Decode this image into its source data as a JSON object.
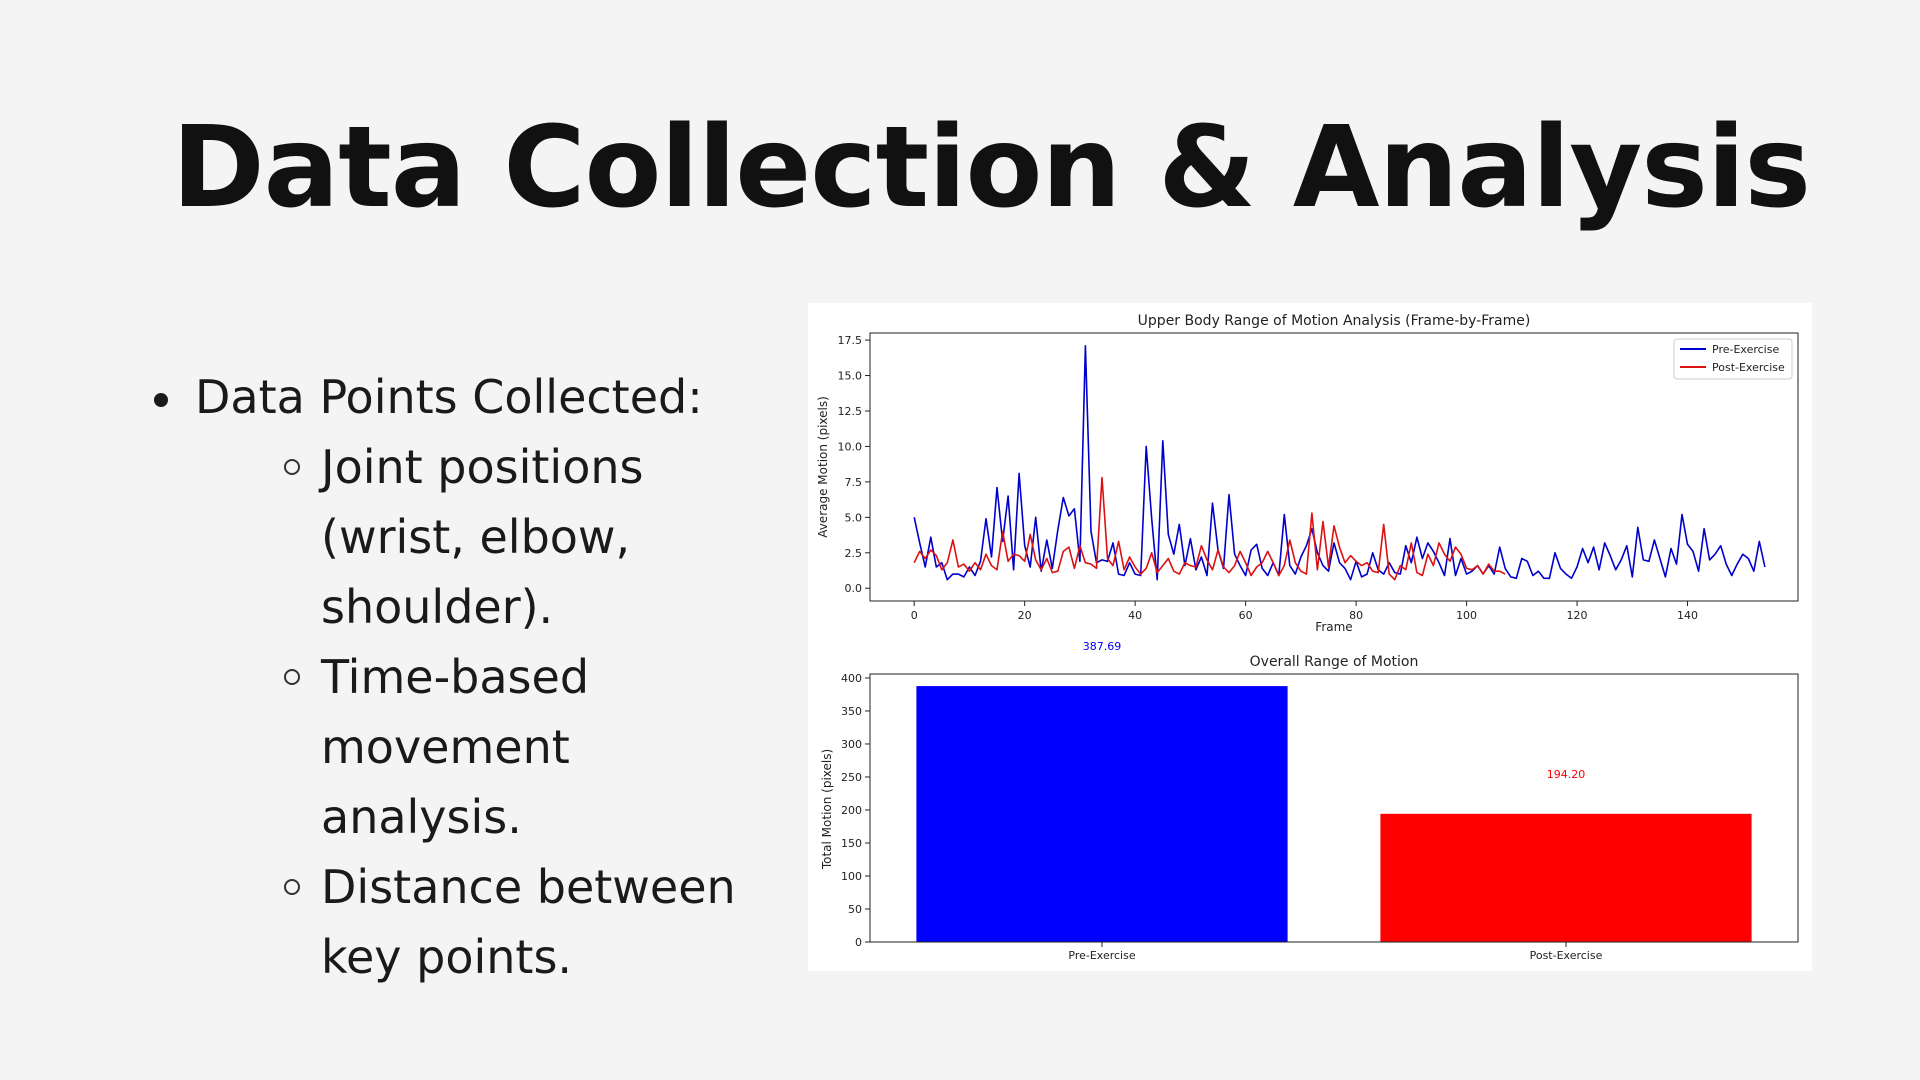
{
  "slide": {
    "title": "Data Collection & Analysis",
    "bullet": "Data Points Collected:",
    "sub_bullets": [
      "Joint positions (wrist, elbow, shoulder).",
      "Time-based movement analysis.",
      "Distance between key points."
    ]
  },
  "chart_data": [
    {
      "type": "line",
      "title": "Upper Body Range of Motion Analysis (Frame-by-Frame)",
      "xlabel": "Frame",
      "ylabel": "Average Motion (pixels)",
      "xlim": [
        -8,
        160
      ],
      "ylim": [
        -0.9,
        18.0
      ],
      "xticks": [
        "0",
        "20",
        "40",
        "60",
        "80",
        "100",
        "120",
        "140"
      ],
      "yticks": [
        "0.0",
        "2.5",
        "5.0",
        "7.5",
        "10.0",
        "12.5",
        "15.0",
        "17.5"
      ],
      "legend_position": "top-right",
      "grid": false,
      "series": [
        {
          "name": "Pre-Exercise",
          "color": "#0000cc",
          "values": [
            5.0,
            3.2,
            1.5,
            3.6,
            1.5,
            1.8,
            0.6,
            1.0,
            1.0,
            0.8,
            1.5,
            0.9,
            1.9,
            4.9,
            2.2,
            7.1,
            3.3,
            6.5,
            1.3,
            8.1,
            3.0,
            1.5,
            5.0,
            1.2,
            3.4,
            1.4,
            4.1,
            6.4,
            5.1,
            5.6,
            1.9,
            17.1,
            4.0,
            1.8,
            2.0,
            1.9,
            3.2,
            1.0,
            0.9,
            1.8,
            1.0,
            0.9,
            10.0,
            4.9,
            0.6,
            10.4,
            3.8,
            2.4,
            4.5,
            1.6,
            3.5,
            1.3,
            2.2,
            0.9,
            6.0,
            2.7,
            1.4,
            6.6,
            2.4,
            1.6,
            0.9,
            2.7,
            3.1,
            1.4,
            0.9,
            1.8,
            0.9,
            5.2,
            1.6,
            1.0,
            2.2,
            3.0,
            4.2,
            2.5,
            1.6,
            1.2,
            3.2,
            1.8,
            1.4,
            0.6,
            1.9,
            0.8,
            1.0,
            2.5,
            1.3,
            1.0,
            1.8,
            1.1,
            1.0,
            3.0,
            1.8,
            3.6,
            2.1,
            3.2,
            2.6,
            1.8,
            0.9,
            3.5,
            0.9,
            2.1,
            1.0,
            1.2,
            1.6,
            1.0,
            1.6,
            1.0,
            2.9,
            1.4,
            0.8,
            0.7,
            2.1,
            1.9,
            0.9,
            1.2,
            0.7,
            0.7,
            2.5,
            1.4,
            1.0,
            0.7,
            1.5,
            2.8,
            1.8,
            2.9,
            1.3,
            3.2,
            2.3,
            1.3,
            2.0,
            3.0,
            0.8,
            4.3,
            2.0,
            1.9,
            3.4,
            2.1,
            0.8,
            2.8,
            1.7,
            5.2,
            3.1,
            2.6,
            1.2,
            4.2,
            2.0,
            2.4,
            3.0,
            1.7,
            0.9,
            1.7,
            2.4,
            2.1,
            1.2,
            3.3,
            1.5
          ]
        },
        {
          "name": "Post-Exercise",
          "color": "#dd1111",
          "values": [
            1.8,
            2.6,
            2.1,
            2.7,
            2.3,
            1.3,
            1.8,
            3.4,
            1.5,
            1.7,
            1.2,
            1.8,
            1.3,
            2.4,
            1.6,
            1.3,
            4.0,
            1.9,
            2.4,
            2.3,
            1.9,
            3.8,
            2.0,
            1.3,
            2.1,
            1.1,
            1.2,
            2.6,
            2.9,
            1.4,
            3.0,
            1.8,
            1.7,
            1.4,
            7.8,
            2.1,
            1.6,
            3.3,
            1.3,
            2.2,
            1.5,
            1.0,
            1.4,
            2.5,
            1.1,
            1.6,
            2.1,
            1.2,
            1.0,
            1.8,
            1.6,
            1.5,
            3.0,
            2.0,
            1.3,
            2.7,
            1.5,
            1.1,
            1.6,
            2.6,
            1.8,
            0.9,
            1.5,
            1.8,
            2.6,
            1.8,
            0.9,
            1.6,
            3.4,
            1.8,
            1.2,
            1.0,
            5.3,
            1.3,
            4.7,
            1.5,
            4.4,
            2.9,
            1.8,
            2.3,
            1.9,
            1.6,
            1.8,
            1.2,
            1.1,
            4.5,
            1.0,
            0.6,
            1.6,
            1.3,
            3.2,
            1.1,
            0.9,
            2.4,
            1.6,
            3.2,
            2.4,
            1.9,
            2.9,
            2.4,
            1.4,
            1.3,
            1.6,
            1.0,
            1.7,
            1.2,
            1.2,
            1.0
          ]
        }
      ]
    },
    {
      "type": "bar",
      "title": "Overall Range of Motion",
      "xlabel": "",
      "ylabel": "Total Motion (pixels)",
      "categories": [
        "Pre-Exercise",
        "Post-Exercise"
      ],
      "values": [
        387.69,
        194.2
      ],
      "data_labels": [
        "387.69",
        "194.20"
      ],
      "colors": [
        "#0000ff",
        "#ff0000"
      ],
      "ylim": [
        0,
        406
      ],
      "yticks": [
        "0",
        "50",
        "100",
        "150",
        "200",
        "250",
        "300",
        "350",
        "400"
      ]
    }
  ]
}
